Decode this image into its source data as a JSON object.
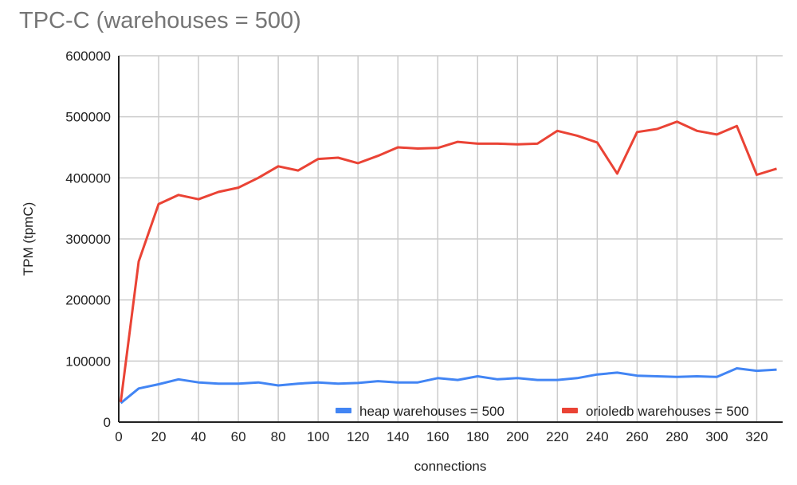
{
  "chart_data": {
    "type": "line",
    "title": "TPC-C (warehouses = 500)",
    "xlabel": "connections",
    "ylabel": "TPM (tpmC)",
    "xlim": [
      0,
      333
    ],
    "ylim": [
      0,
      600000
    ],
    "x_ticks": [
      0,
      20,
      40,
      60,
      80,
      100,
      120,
      140,
      160,
      180,
      200,
      220,
      240,
      260,
      280,
      300,
      320
    ],
    "y_ticks": [
      0,
      100000,
      200000,
      300000,
      400000,
      500000,
      600000
    ],
    "grid": true,
    "legend_position": "bottom-right inside plot",
    "x": [
      1,
      10,
      20,
      30,
      40,
      50,
      60,
      70,
      80,
      90,
      100,
      110,
      120,
      130,
      140,
      150,
      160,
      170,
      180,
      190,
      200,
      210,
      220,
      230,
      240,
      250,
      260,
      270,
      280,
      290,
      300,
      310,
      320,
      330
    ],
    "series": [
      {
        "name": "heap warehouses = 500",
        "color": "#4285f4",
        "values": [
          31000,
          55000,
          62000,
          70000,
          65000,
          63000,
          63000,
          65000,
          60000,
          63000,
          65000,
          63000,
          64000,
          67000,
          65000,
          65000,
          72000,
          69000,
          75000,
          70000,
          72000,
          69000,
          69000,
          72000,
          78000,
          81000,
          76000,
          75000,
          74000,
          75000,
          74000,
          88000,
          84000,
          86000
        ]
      },
      {
        "name": "orioledb warehouses = 500",
        "color": "#ea4335",
        "values": [
          33000,
          263000,
          357000,
          372000,
          365000,
          377000,
          384000,
          400000,
          419000,
          412000,
          431000,
          433000,
          424000,
          436000,
          450000,
          448000,
          449000,
          459000,
          456000,
          456000,
          455000,
          456000,
          477000,
          469000,
          458000,
          407000,
          475000,
          480000,
          492000,
          477000,
          471000,
          485000,
          405000,
          415000
        ]
      }
    ]
  },
  "colors": {
    "title": "#757575",
    "grid": "#cccccc",
    "axis": "#222222"
  }
}
